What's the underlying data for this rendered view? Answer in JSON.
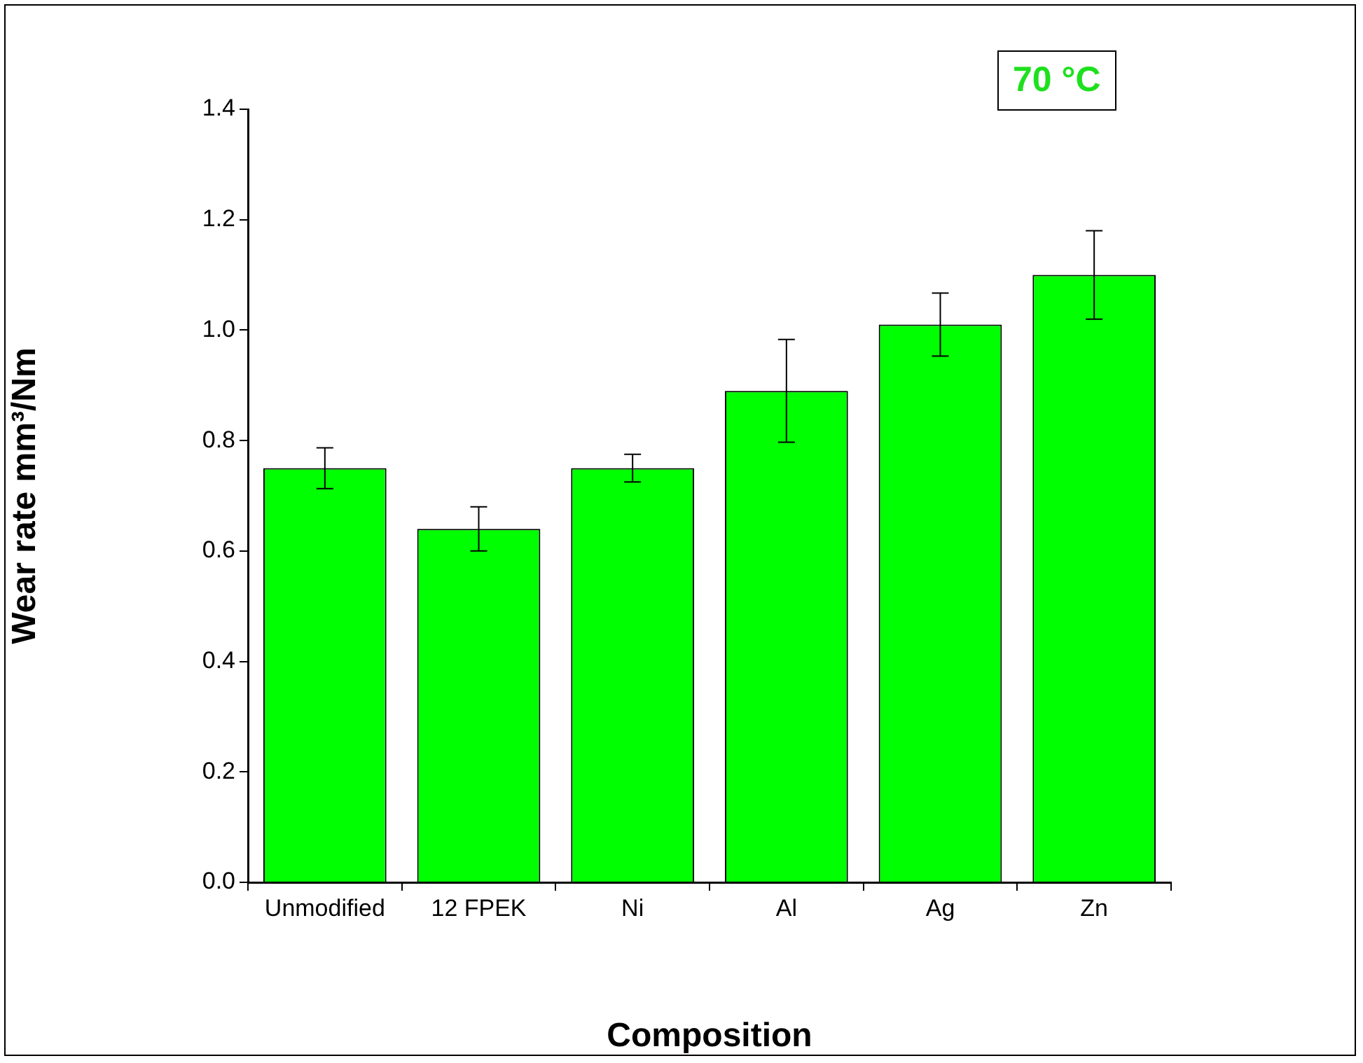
{
  "chart_data": {
    "type": "bar",
    "xlabel": "Composition",
    "ylabel": "Wear rate mm³/Nm",
    "categories": [
      "Unmodified",
      "12 FPEK",
      "Ni",
      "Al",
      "Ag",
      "Zn"
    ],
    "values": [
      0.75,
      0.64,
      0.75,
      0.89,
      1.01,
      1.1
    ],
    "errors": [
      0.037,
      0.04,
      0.025,
      0.093,
      0.057,
      0.08
    ],
    "color": "#00ff00",
    "ylim": [
      0,
      1.4
    ],
    "yticks": [
      {
        "value": 0,
        "label": "0.0"
      },
      0.2,
      0.4,
      0.6,
      0.8,
      {
        "value": 1,
        "label": "1.0"
      },
      1.2,
      1.4
    ],
    "annotations": [
      "70 °C"
    ]
  }
}
